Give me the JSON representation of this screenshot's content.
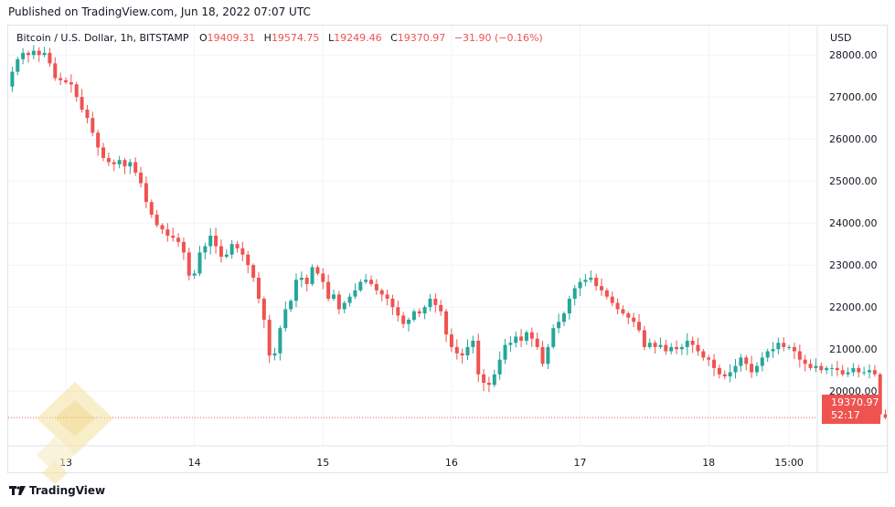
{
  "header": {
    "published": "Published on TradingView.com, Jun 18, 2022 07:07 UTC"
  },
  "legend": {
    "symbol": "Bitcoin / U.S. Dollar, 1h, BITSTAMP",
    "open_label": "O",
    "open": "19409.31",
    "high_label": "H",
    "high": "19574.75",
    "low_label": "L",
    "low": "19249.46",
    "close_label": "C",
    "close": "19370.97",
    "change": "−31.90 (−0.16%)"
  },
  "axis": {
    "currency": "USD"
  },
  "last_price": {
    "value": "19370.97",
    "countdown": "52:17"
  },
  "brand": {
    "name": "TradingView"
  },
  "colors": {
    "up": "#26a69a",
    "down": "#ef5350",
    "grid": "#f0f3fa",
    "price_line": "#ef5350"
  },
  "chart_data": {
    "type": "candlestick",
    "title": "Bitcoin / U.S. Dollar, 1h, BITSTAMP",
    "ylabel": "USD",
    "ylim": [
      18700,
      28700
    ],
    "yticks": [
      "28000.00",
      "27000.00",
      "26000.00",
      "25000.00",
      "24000.00",
      "23000.00",
      "22000.00",
      "21000.00",
      "20000.00"
    ],
    "ytick_values": [
      28000,
      27000,
      26000,
      25000,
      24000,
      23000,
      22000,
      21000,
      20000
    ],
    "xticks": [
      {
        "label": "13",
        "hour": 0
      },
      {
        "label": "14",
        "hour": 24
      },
      {
        "label": "15",
        "hour": 48
      },
      {
        "label": "16",
        "hour": 72
      },
      {
        "label": "17",
        "hour": 96
      },
      {
        "label": "18",
        "hour": 120
      },
      {
        "label": "15:00",
        "hour": 135
      }
    ],
    "first_candle_hour": -10,
    "last_price": 19370.97,
    "grid": true,
    "closes": [
      27600,
      27900,
      28050,
      28000,
      28100,
      28000,
      28050,
      27800,
      27450,
      27400,
      27350,
      27300,
      27000,
      26700,
      26500,
      26150,
      25800,
      25550,
      25450,
      25400,
      25500,
      25350,
      25450,
      25200,
      24950,
      24500,
      24200,
      23950,
      23850,
      23700,
      23650,
      23550,
      23300,
      22750,
      22800,
      23300,
      23450,
      23700,
      23450,
      23200,
      23250,
      23500,
      23400,
      23250,
      23000,
      22700,
      22200,
      21700,
      20850,
      20900,
      21500,
      21950,
      22150,
      22650,
      22700,
      22550,
      22950,
      22800,
      22600,
      22200,
      22300,
      21950,
      22100,
      22250,
      22400,
      22600,
      22650,
      22550,
      22400,
      22300,
      22200,
      22000,
      21800,
      21600,
      21700,
      21900,
      21850,
      22000,
      22200,
      22050,
      21900,
      21350,
      21050,
      20900,
      20850,
      21050,
      21200,
      20400,
      20200,
      20150,
      20400,
      20750,
      21100,
      21150,
      21300,
      21200,
      21400,
      21250,
      21050,
      20650,
      21050,
      21500,
      21650,
      21850,
      22200,
      22450,
      22600,
      22650,
      22700,
      22500,
      22400,
      22250,
      22100,
      21950,
      21850,
      21750,
      21650,
      21450,
      21050,
      21150,
      21050,
      21100,
      20950,
      21050,
      21000,
      21050,
      21200,
      21100,
      20950,
      20800,
      20750,
      20550,
      20400,
      20350,
      20450,
      20600,
      20800,
      20650,
      20450,
      20600,
      20800,
      20950,
      21000,
      21150,
      21050,
      21050,
      20950,
      20750,
      20650,
      20550,
      20600,
      20500,
      20550,
      20550,
      20500,
      20400,
      20450,
      20550,
      20450,
      20450,
      20500,
      20400,
      19450,
      19370
    ]
  }
}
